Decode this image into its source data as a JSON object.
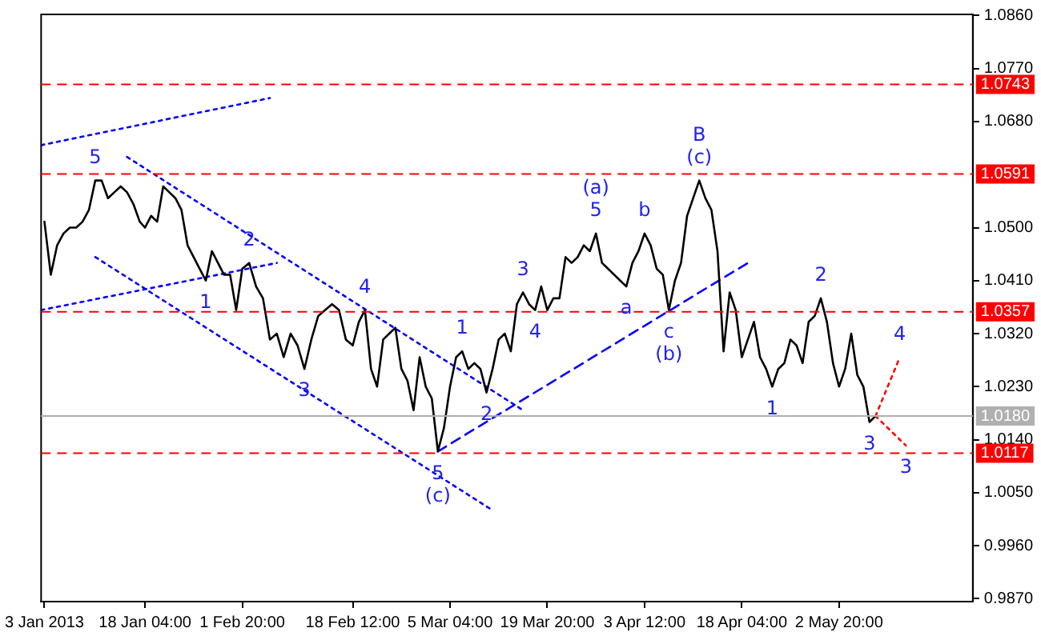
{
  "chart_data": {
    "type": "line",
    "marker": "none",
    "legend": false,
    "grid": false,
    "x": [
      "2013-01-03T00:00",
      "2013-01-03T23:00",
      "2013-01-04T22:00",
      "2013-01-05T21:00",
      "2013-01-06T20:00",
      "2013-01-07T19:00",
      "2013-01-08T18:00",
      "2013-01-09T17:00",
      "2013-01-10T16:00",
      "2013-01-11T15:00",
      "2013-01-12T14:00",
      "2013-01-13T13:00",
      "2013-01-14T12:00",
      "2013-01-15T11:00",
      "2013-01-16T10:00",
      "2013-01-17T09:00",
      "2013-01-18T04:00",
      "2013-01-19T02:00",
      "2013-01-20T00:00",
      "2013-01-20T22:00",
      "2013-01-21T20:00",
      "2013-01-22T18:00",
      "2013-01-23T16:00",
      "2013-01-24T14:00",
      "2013-01-25T12:00",
      "2013-01-26T10:00",
      "2013-01-27T08:00",
      "2013-01-28T06:00",
      "2013-01-29T04:00",
      "2013-01-30T02:00",
      "2013-01-31T00:00",
      "2013-01-31T22:00",
      "2013-02-01T20:00",
      "2013-02-02T21:00",
      "2013-02-03T22:00",
      "2013-02-04T23:00",
      "2013-02-06T00:00",
      "2013-02-07T01:00",
      "2013-02-08T02:00",
      "2013-02-09T03:00",
      "2013-02-10T04:00",
      "2013-02-11T05:00",
      "2013-02-12T06:00",
      "2013-02-13T07:00",
      "2013-02-14T08:00",
      "2013-02-15T09:00",
      "2013-02-16T10:00",
      "2013-02-17T11:00",
      "2013-02-18T12:00",
      "2013-02-19T10:00",
      "2013-02-20T08:00",
      "2013-02-21T06:00",
      "2013-02-22T04:00",
      "2013-02-23T02:00",
      "2013-02-24T00:00",
      "2013-02-24T22:00",
      "2013-02-25T20:00",
      "2013-02-26T18:00",
      "2013-02-27T16:00",
      "2013-02-28T14:00",
      "2013-03-01T12:00",
      "2013-03-02T10:00",
      "2013-03-03T08:00",
      "2013-03-04T06:00",
      "2013-03-05T04:00",
      "2013-03-06T02:00",
      "2013-03-07T00:00",
      "2013-03-07T22:00",
      "2013-03-08T20:00",
      "2013-03-09T18:00",
      "2013-03-10T16:00",
      "2013-03-11T14:00",
      "2013-03-12T12:00",
      "2013-03-13T10:00",
      "2013-03-14T08:00",
      "2013-03-15T06:00",
      "2013-03-16T04:00",
      "2013-03-17T02:00",
      "2013-03-18T00:00",
      "2013-03-18T22:00",
      "2013-03-19T20:00",
      "2013-03-20T18:00",
      "2013-03-21T16:00",
      "2013-03-22T14:00",
      "2013-03-23T12:00",
      "2013-03-24T10:00",
      "2013-03-25T08:00",
      "2013-03-26T06:00",
      "2013-03-27T04:00",
      "2013-03-28T02:00",
      "2013-03-29T00:00",
      "2013-03-29T22:00",
      "2013-03-30T20:00",
      "2013-03-31T18:00",
      "2013-04-01T16:00",
      "2013-04-02T14:00",
      "2013-04-03T12:00",
      "2013-04-04T10:00",
      "2013-04-05T08:00",
      "2013-04-06T06:00",
      "2013-04-07T04:00",
      "2013-04-08T02:00",
      "2013-04-09T00:00",
      "2013-04-09T22:00",
      "2013-04-10T20:00",
      "2013-04-11T18:00",
      "2013-04-12T16:00",
      "2013-04-13T14:00",
      "2013-04-14T12:00",
      "2013-04-15T10:00",
      "2013-04-16T08:00",
      "2013-04-17T06:00",
      "2013-04-18T04:00",
      "2013-04-19T02:00",
      "2013-04-20T00:00",
      "2013-04-20T22:00",
      "2013-04-21T20:00",
      "2013-04-22T18:00",
      "2013-04-23T16:00",
      "2013-04-24T14:00",
      "2013-04-25T12:00",
      "2013-04-26T10:00",
      "2013-04-27T08:00",
      "2013-04-28T06:00",
      "2013-04-29T04:00",
      "2013-04-30T02:00",
      "2013-05-01T00:00",
      "2013-05-01T22:00",
      "2013-05-02T20:00",
      "2013-05-03T18:00",
      "2013-05-04T16:00",
      "2013-05-05T14:00",
      "2013-05-06T12:00",
      "2013-05-07T10:00",
      "2013-05-08T08:00"
    ],
    "series": [
      {
        "color": "#000000",
        "values": [
          1.051,
          1.042,
          1.047,
          1.049,
          1.05,
          1.05,
          1.051,
          1.053,
          1.058,
          1.058,
          1.055,
          1.056,
          1.057,
          1.056,
          1.054,
          1.051,
          1.05,
          1.052,
          1.051,
          1.057,
          1.056,
          1.055,
          1.053,
          1.047,
          1.045,
          1.043,
          1.041,
          1.046,
          1.044,
          1.042,
          1.042,
          1.036,
          1.043,
          1.044,
          1.04,
          1.038,
          1.031,
          1.032,
          1.028,
          1.032,
          1.03,
          1.026,
          1.031,
          1.035,
          1.036,
          1.037,
          1.036,
          1.031,
          1.03,
          1.034,
          1.036,
          1.026,
          1.023,
          1.031,
          1.032,
          1.033,
          1.026,
          1.024,
          1.019,
          1.028,
          1.023,
          1.021,
          1.012,
          1.016,
          1.023,
          1.028,
          1.029,
          1.026,
          1.027,
          1.026,
          1.022,
          1.026,
          1.031,
          1.032,
          1.029,
          1.037,
          1.039,
          1.037,
          1.036,
          1.04,
          1.036,
          1.038,
          1.038,
          1.045,
          1.044,
          1.045,
          1.047,
          1.046,
          1.049,
          1.044,
          1.043,
          1.042,
          1.041,
          1.04,
          1.044,
          1.046,
          1.049,
          1.047,
          1.043,
          1.042,
          1.036,
          1.041,
          1.044,
          1.052,
          1.055,
          1.058,
          1.055,
          1.053,
          1.046,
          1.029,
          1.039,
          1.036,
          1.028,
          1.031,
          1.034,
          1.028,
          1.026,
          1.023,
          1.026,
          1.027,
          1.031,
          1.03,
          1.027,
          1.034,
          1.035,
          1.038,
          1.034,
          1.027,
          1.023,
          1.026,
          1.032,
          1.025,
          1.023,
          1.017,
          1.018
        ]
      },
      {
        "color": "#0000ff",
        "line_style": "dotted",
        "x": [
          "2013-01-02T12:00",
          "2013-02-06T00:00"
        ],
        "values": [
          1.064,
          1.072
        ]
      },
      {
        "color": "#0000ff",
        "line_style": "dotted",
        "x": [
          "2013-01-02T12:00",
          "2013-02-07T01:00"
        ],
        "values": [
          1.036,
          1.044
        ]
      },
      {
        "color": "#0000ff",
        "line_style": "dotted",
        "x": [
          "2013-01-15T11:00",
          "2013-03-16T04:00"
        ],
        "values": [
          1.062,
          1.019
        ]
      },
      {
        "color": "#0000ff",
        "line_style": "dotted",
        "x": [
          "2013-01-10T16:00",
          "2013-03-11T14:00"
        ],
        "values": [
          1.045,
          1.002
        ]
      },
      {
        "color": "#0000ff",
        "line_style": "dashed",
        "x": [
          "2013-03-03T08:00",
          "2013-04-19T02:00"
        ],
        "values": [
          1.012,
          1.044
        ]
      },
      {
        "color": "#ff0000",
        "line_style": "dotted",
        "x": [
          "2013-05-08T08:00",
          "2013-05-12T00:00"
        ],
        "values": [
          1.018,
          1.028
        ]
      },
      {
        "color": "#ff0000",
        "line_style": "dotted",
        "x": [
          "2013-05-08T08:00",
          "2013-05-12T22:00"
        ],
        "values": [
          1.018,
          1.013
        ]
      }
    ],
    "xlim": [
      "2013-01-02T12:00",
      "2013-05-23T00:00"
    ],
    "xticks": [
      {
        "value": "2013-01-03T00:00",
        "label": "3 Jan 2013"
      },
      {
        "value": "2013-01-18T04:00",
        "label": "18 Jan 04:00"
      },
      {
        "value": "2013-02-01T20:00",
        "label": "1 Feb 20:00"
      },
      {
        "value": "2013-02-18T12:00",
        "label": "18 Feb 12:00"
      },
      {
        "value": "2013-03-05T04:00",
        "label": "5 Mar 04:00"
      },
      {
        "value": "2013-03-19T20:00",
        "label": "19 Mar 20:00"
      },
      {
        "value": "2013-04-03T12:00",
        "label": "3 Apr 12:00"
      },
      {
        "value": "2013-04-18T04:00",
        "label": "18 Apr 04:00"
      },
      {
        "value": "2013-05-02T20:00",
        "label": "2 May 20:00"
      }
    ],
    "ylim": [
      0.9865,
      1.0862
    ],
    "yticks": [
      {
        "value": 1.086,
        "label": "1.0860"
      },
      {
        "value": 1.077,
        "label": "1.0770"
      },
      {
        "value": 1.068,
        "label": "1.0680"
      },
      {
        "value": 1.05,
        "label": "1.0500"
      },
      {
        "value": 1.041,
        "label": "1.0410"
      },
      {
        "value": 1.032,
        "label": "1.0320"
      },
      {
        "value": 1.023,
        "label": "1.0230"
      },
      {
        "value": 1.014,
        "label": "1.0140"
      },
      {
        "value": 1.005,
        "label": "1.0050"
      },
      {
        "value": 0.996,
        "label": "0.9960"
      },
      {
        "value": 0.987,
        "label": "0.9870"
      }
    ],
    "ref_lines": [
      {
        "axis": "y",
        "value": 1.0743,
        "label": "1.0743",
        "color": "#ff0000",
        "line_style": "dashed"
      },
      {
        "axis": "y",
        "value": 1.0591,
        "label": "1.0591",
        "color": "#ff0000",
        "line_style": "dashed"
      },
      {
        "axis": "y",
        "value": 1.0357,
        "label": "1.0357",
        "color": "#ff0000",
        "line_style": "dashed"
      },
      {
        "axis": "y",
        "value": 1.018,
        "label": "1.0180",
        "color": "#b0b0b0",
        "line_style": "solid"
      },
      {
        "axis": "y",
        "value": 1.0117,
        "label": "1.0117",
        "color": "#ff0000",
        "line_style": "dashed"
      }
    ],
    "annotations": [
      {
        "text": "5",
        "x": "2013-01-10T16:00",
        "y": 1.058
      },
      {
        "text": "2",
        "x": "2013-02-02T21:00",
        "y": 1.044
      },
      {
        "text": "1",
        "x": "2013-01-27T08:00",
        "y": 1.041
      },
      {
        "text": "4",
        "x": "2013-02-20T08:00",
        "y": 1.036
      },
      {
        "text": "3",
        "x": "2013-02-11T05:00",
        "y": 1.026
      },
      {
        "text": "5",
        "x": "2013-03-03T08:00",
        "y": 1.012
      },
      {
        "text": "(c)",
        "x": "2013-03-03T08:00",
        "y": 1.012
      },
      {
        "text": "1",
        "x": "2013-03-07T00:00",
        "y": 1.029
      },
      {
        "text": "2",
        "x": "2013-03-10T16:00",
        "y": 1.022
      },
      {
        "text": "3",
        "x": "2013-03-16T04:00",
        "y": 1.039
      },
      {
        "text": "4",
        "x": "2013-03-18T00:00",
        "y": 1.036
      },
      {
        "text": "5",
        "x": "2013-03-27T04:00",
        "y": 1.049
      },
      {
        "text": "(a)",
        "x": "2013-03-27T04:00",
        "y": 1.049
      },
      {
        "text": "b",
        "x": "2013-04-03T12:00",
        "y": 1.049
      },
      {
        "text": "a",
        "x": "2013-03-31T18:00",
        "y": 1.04
      },
      {
        "text": "c",
        "x": "2013-04-07T04:00",
        "y": 1.036
      },
      {
        "text": "(b)",
        "x": "2013-04-07T04:00",
        "y": 1.036
      },
      {
        "text": "(c)",
        "x": "2013-04-11T18:00",
        "y": 1.058
      },
      {
        "text": "B",
        "x": "2013-04-11T18:00",
        "y": 1.058
      },
      {
        "text": "2",
        "x": "2013-04-30T02:00",
        "y": 1.038
      },
      {
        "text": "1",
        "x": "2013-04-22T18:00",
        "y": 1.023
      },
      {
        "text": "4",
        "x": "2013-05-12T00:00",
        "y": 1.028
      },
      {
        "text": "3",
        "x": "2013-05-07T10:00",
        "y": 1.017
      },
      {
        "text": "3",
        "x": "2013-05-12T22:00",
        "y": 1.013
      }
    ]
  }
}
